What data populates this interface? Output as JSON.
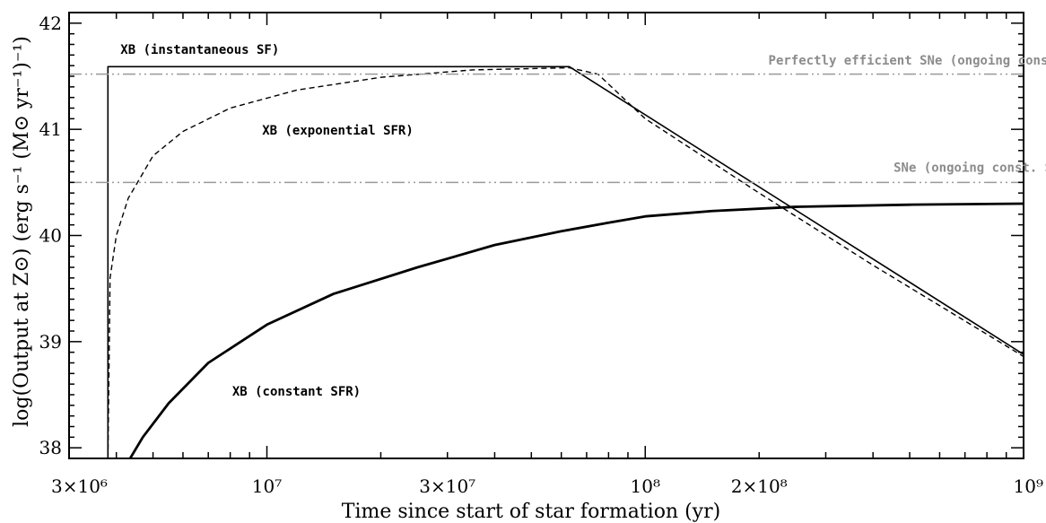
{
  "chart_data": {
    "type": "line",
    "xscale": "log",
    "xlim": [
      3000000,
      1000000000
    ],
    "ylim": [
      37.9,
      42.1
    ],
    "xlabel": "Time since start of star formation (yr)",
    "ylabel": "log(Output at Z⊙) (erg s⁻¹ (M⊙ yr⁻¹)⁻¹)",
    "x_ticks": [
      {
        "value": 3000000,
        "label": "3×10⁶"
      },
      {
        "value": 10000000,
        "label": "10⁷"
      },
      {
        "value": 30000000,
        "label": "3×10⁷"
      },
      {
        "value": 100000000,
        "label": "10⁸"
      },
      {
        "value": 200000000,
        "label": "2×10⁸"
      },
      {
        "value": 1000000000,
        "label": "10⁹"
      }
    ],
    "y_ticks": [
      {
        "value": 38,
        "label": "38"
      },
      {
        "value": 39,
        "label": "39"
      },
      {
        "value": 40,
        "label": "40"
      },
      {
        "value": 41,
        "label": "41"
      },
      {
        "value": 42,
        "label": "42"
      }
    ],
    "series": [
      {
        "name": "XB (instantaneous SF)",
        "style": "solid",
        "color": "#000000",
        "points": [
          [
            3800000,
            37.9
          ],
          [
            3800000,
            41.59
          ],
          [
            63000000,
            41.59
          ],
          [
            1000000000,
            38.88
          ]
        ]
      },
      {
        "name": "XB (exponential SFR)",
        "style": "dashed",
        "color": "#000000",
        "points": [
          [
            3800000,
            37.9
          ],
          [
            3850000,
            39.6
          ],
          [
            4000000,
            40.0
          ],
          [
            4300000,
            40.35
          ],
          [
            5000000,
            40.75
          ],
          [
            6000000,
            40.98
          ],
          [
            8000000,
            41.2
          ],
          [
            12000000,
            41.37
          ],
          [
            20000000,
            41.49
          ],
          [
            35000000,
            41.56
          ],
          [
            63000000,
            41.58
          ],
          [
            75000000,
            41.52
          ],
          [
            100000000,
            41.1
          ],
          [
            200000000,
            40.4
          ],
          [
            400000000,
            39.72
          ],
          [
            1000000000,
            38.86
          ]
        ]
      },
      {
        "name": "XB (constant SFR)",
        "style": "solid-thick",
        "color": "#000000",
        "points": [
          [
            4350000,
            37.9
          ],
          [
            4700000,
            38.1
          ],
          [
            5500000,
            38.42
          ],
          [
            7000000,
            38.8
          ],
          [
            10000000,
            39.16
          ],
          [
            15000000,
            39.45
          ],
          [
            25000000,
            39.7
          ],
          [
            40000000,
            39.91
          ],
          [
            60000000,
            40.04
          ],
          [
            80000000,
            40.12
          ],
          [
            100000000,
            40.18
          ],
          [
            150000000,
            40.23
          ],
          [
            250000000,
            40.27
          ],
          [
            500000000,
            40.29
          ],
          [
            1000000000,
            40.3
          ]
        ]
      },
      {
        "name": "Perfectly efficient SNe (ongoing const. SFR)",
        "style": "dash-dot-dot",
        "color": "#9a9a9a",
        "points": [
          [
            3000000,
            41.52
          ],
          [
            1000000000,
            41.52
          ]
        ]
      },
      {
        "name": "SNe (ongoing const. SFR)",
        "style": "dash-dot-dot",
        "color": "#9a9a9a",
        "points": [
          [
            3000000,
            40.5
          ],
          [
            1000000000,
            40.5
          ]
        ]
      }
    ],
    "annotations": [
      {
        "text": "XB (instantaneous SF)",
        "x": 3800000,
        "y": 41.71,
        "color": "#000000"
      },
      {
        "text": "XB (exponential SFR)",
        "x": 9000000,
        "y": 40.95,
        "color": "#000000"
      },
      {
        "text": "XB (constant SFR)",
        "x": 7500000,
        "y": 38.49,
        "color": "#000000"
      },
      {
        "text": "Perfectly efficient SNe (ongoing const. SFR)",
        "x": 196000000,
        "y": 41.61,
        "color": "#8c8c8c"
      },
      {
        "text": "SNe (ongoing const. SFR)",
        "x": 420000000,
        "y": 40.6,
        "color": "#8c8c8c"
      }
    ]
  }
}
